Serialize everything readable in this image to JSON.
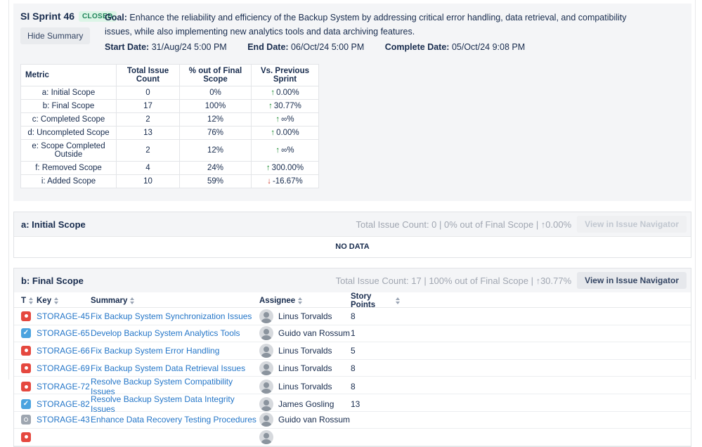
{
  "summary": {
    "sprint_name": "SI Sprint 46",
    "status_badge": "CLOSED",
    "hide_summary_label": "Hide Summary",
    "goal_label": "Goal:",
    "goal_text": " Enhance the reliability and efficiency of the Backup System by addressing critical error handling, data retrieval, and compatibility issues, while also implementing new analytics tools and data archiving features.",
    "start_date_label": "Start Date:",
    "start_date": "31/Aug/24 5:00 PM",
    "end_date_label": "End Date:",
    "end_date": "06/Oct/24 5:00 PM",
    "complete_date_label": "Complete Date:",
    "complete_date": "05/Oct/24 9:08 PM"
  },
  "metrics_table": {
    "headers": [
      "Metric",
      "Total Issue Count",
      "% out of Final Scope",
      "Vs. Previous Sprint"
    ],
    "rows": [
      {
        "metric": "a: Initial Scope",
        "count": "0",
        "pct": "0%",
        "trend_dir": "up",
        "trend": "0.00%"
      },
      {
        "metric": "b: Final Scope",
        "count": "17",
        "pct": "100%",
        "trend_dir": "up",
        "trend": "30.77%"
      },
      {
        "metric": "c: Completed Scope",
        "count": "2",
        "pct": "12%",
        "trend_dir": "up",
        "trend": "∞%"
      },
      {
        "metric": "d: Uncompleted Scope",
        "count": "13",
        "pct": "76%",
        "trend_dir": "up",
        "trend": "0.00%"
      },
      {
        "metric": "e: Scope Completed Outside",
        "count": "2",
        "pct": "12%",
        "trend_dir": "up",
        "trend": "∞%"
      },
      {
        "metric": "f: Removed Scope",
        "count": "4",
        "pct": "24%",
        "trend_dir": "up",
        "trend": "300.00%"
      },
      {
        "metric": "i: Added Scope",
        "count": "10",
        "pct": "59%",
        "trend_dir": "down",
        "trend": "-16.67%"
      }
    ]
  },
  "section_a": {
    "title": "a: Initial Scope",
    "stats": "Total Issue Count: 0 | 0% out of Final Scope | ↑0.00%",
    "button_label": "View in Issue Navigator",
    "button_disabled": true,
    "no_data": "NO DATA"
  },
  "section_b": {
    "title": "b: Final Scope",
    "stats": "Total Issue Count: 17 | 100% out of Final Scope | ↑30.77%",
    "button_label": "View in Issue Navigator",
    "button_disabled": false,
    "columns": [
      "T",
      "Key",
      "Summary",
      "Assignee",
      "Story Points"
    ],
    "rows": [
      {
        "type": "bug",
        "key": "STORAGE-45",
        "summary": "Fix Backup System Synchronization Issues",
        "assignee": "Linus Torvalds",
        "points": "8"
      },
      {
        "type": "task",
        "key": "STORAGE-65",
        "summary": "Develop Backup System Analytics Tools",
        "assignee": "Guido van Rossum",
        "points": "1"
      },
      {
        "type": "bug",
        "key": "STORAGE-66",
        "summary": "Fix Backup System Error Handling",
        "assignee": "Linus Torvalds",
        "points": "5"
      },
      {
        "type": "bug",
        "key": "STORAGE-69",
        "summary": "Fix Backup System Data Retrieval Issues",
        "assignee": "Linus Torvalds",
        "points": "8"
      },
      {
        "type": "bug",
        "key": "STORAGE-72",
        "summary": "Resolve Backup System Compatibility Issues",
        "assignee": "Linus Torvalds",
        "points": "8"
      },
      {
        "type": "task",
        "key": "STORAGE-82",
        "summary": "Resolve Backup System Data Integrity Issues",
        "assignee": "James Gosling",
        "points": "13"
      },
      {
        "type": "other",
        "key": "STORAGE-43",
        "summary": "Enhance Data Recovery Testing Procedures",
        "assignee": "Guido van Rossum",
        "points": ""
      },
      {
        "type": "bug",
        "key": "",
        "summary": "",
        "assignee": " ",
        "points": "",
        "partial": true
      }
    ]
  },
  "colors": {
    "panel_bg": "#f4f5f7",
    "link": "#2476c8",
    "green": "#14892c",
    "red": "#d04437",
    "badge_text": "#1f845a",
    "badge_bg": "#dcf5e7",
    "text": "#172b4d",
    "muted": "#a0a6b1",
    "bug_icon": "#e5483f",
    "task_icon": "#4aa3df",
    "other_icon": "#9ea6b0"
  }
}
